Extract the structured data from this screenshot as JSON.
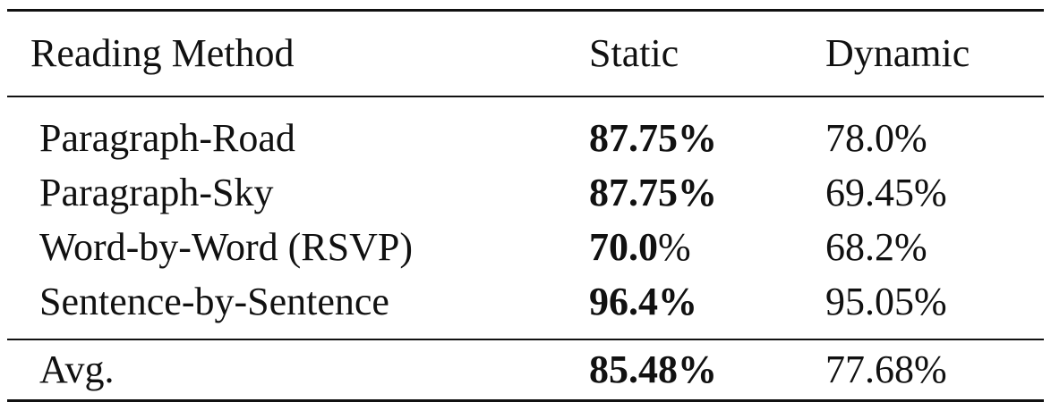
{
  "table": {
    "headers": {
      "method": "Reading Method",
      "static": "Static",
      "dynamic": "Dynamic"
    },
    "rows": [
      {
        "method": "Paragraph-Road",
        "static_num": "87.75",
        "static_pct": "%",
        "dynamic": "78.0%"
      },
      {
        "method": "Paragraph-Sky",
        "static_num": "87.75",
        "static_pct": "%",
        "dynamic": "69.45%"
      },
      {
        "method": "Word-by-Word (RSVP)",
        "static_num": "70.0",
        "static_pct": "%",
        "dynamic": "68.2%"
      },
      {
        "method": "Sentence-by-Sentence",
        "static_num": "96.4",
        "static_pct": "%",
        "dynamic": "95.05%"
      }
    ],
    "avg": {
      "method": "Avg.",
      "static_num": "85.48",
      "static_pct": "%",
      "dynamic": "77.68%"
    }
  }
}
